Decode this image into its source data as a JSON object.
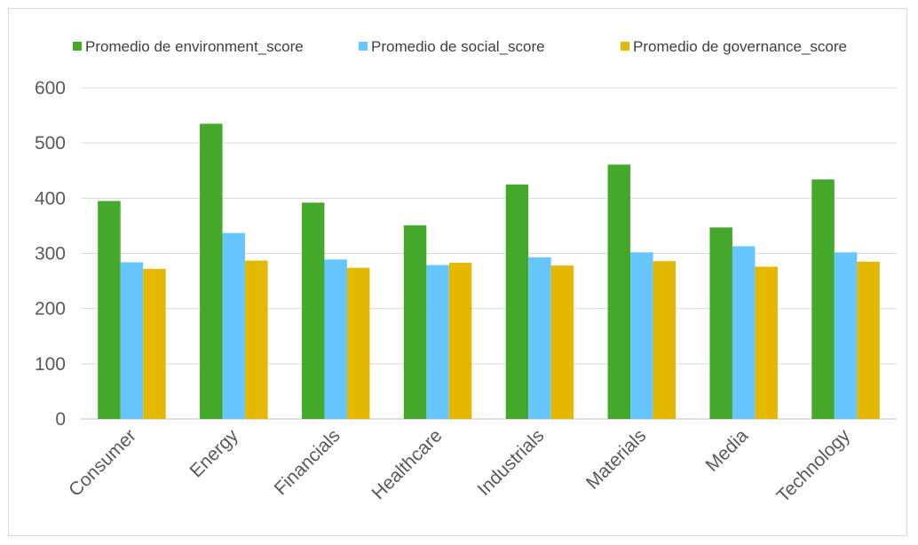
{
  "chart_data": {
    "type": "bar",
    "title": "",
    "xlabel": "",
    "ylabel": "",
    "categories": [
      "Consumer",
      "Energy",
      "Financials",
      "Healthcare",
      "Industrials",
      "Materials",
      "Media",
      "Technology"
    ],
    "series": [
      {
        "name": "Promedio de environment_score",
        "color": "#44a82a",
        "values": [
          395,
          535,
          392,
          351,
          425,
          461,
          347,
          434
        ]
      },
      {
        "name": "Promedio de social_score",
        "color": "#66c6fd",
        "values": [
          284,
          337,
          289,
          279,
          293,
          302,
          313,
          302
        ]
      },
      {
        "name": "Promedio de governance_score",
        "color": "#e5b800",
        "values": [
          272,
          287,
          274,
          283,
          278,
          286,
          276,
          285
        ]
      }
    ],
    "ylim": [
      0,
      600
    ],
    "yticks": [
      0,
      100,
      200,
      300,
      400,
      500,
      600
    ],
    "grid": true,
    "legend_position": "top"
  }
}
